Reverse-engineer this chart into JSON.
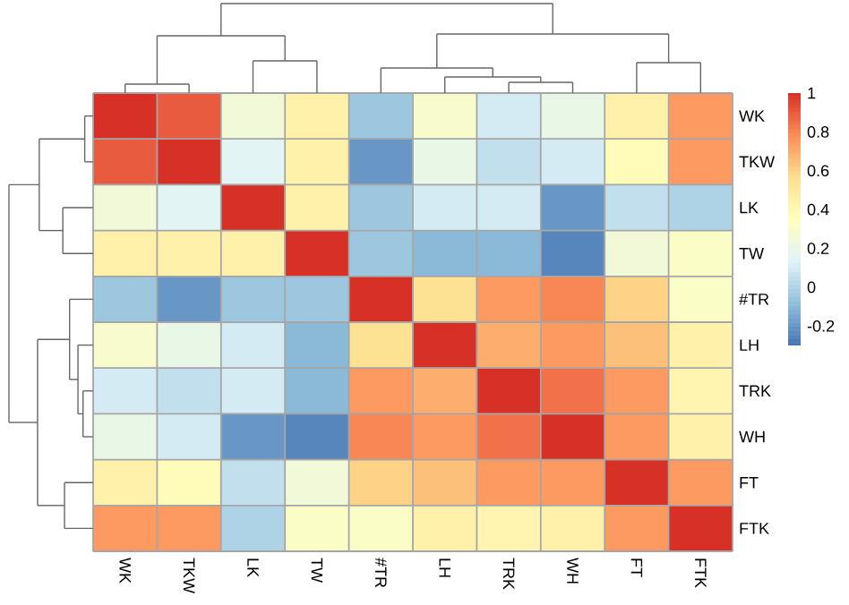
{
  "chart_data": {
    "type": "heatmap",
    "categories": [
      "WK",
      "TKW",
      "LK",
      "TW",
      "#TR",
      "LH",
      "TRK",
      "WH",
      "FT",
      "FTK"
    ],
    "y_categories": [
      "WK",
      "TKW",
      "LK",
      "TW",
      "#TR",
      "LH",
      "TRK",
      "WH",
      "FT",
      "FTK"
    ],
    "cells": [
      [
        1,
        0.9,
        0.25,
        0.45,
        -0.05,
        0.3,
        0.1,
        0.2,
        0.45,
        0.75
      ],
      [
        0.9,
        1,
        0.15,
        0.45,
        -0.2,
        0.2,
        0.05,
        0.1,
        0.38,
        0.75
      ],
      [
        0.25,
        0.15,
        1,
        0.45,
        -0.05,
        0.1,
        0.1,
        -0.2,
        0.05,
        0.0
      ],
      [
        0.45,
        0.45,
        0.45,
        1,
        -0.05,
        -0.1,
        -0.1,
        -0.25,
        0.25,
        0.32
      ],
      [
        -0.05,
        -0.2,
        -0.05,
        -0.05,
        1,
        0.55,
        0.75,
        0.8,
        0.6,
        0.32
      ],
      [
        0.3,
        0.2,
        0.1,
        -0.1,
        0.55,
        1,
        0.7,
        0.75,
        0.65,
        0.45
      ],
      [
        0.1,
        0.05,
        0.1,
        -0.1,
        0.75,
        0.7,
        1,
        0.85,
        0.75,
        0.42
      ],
      [
        0.2,
        0.1,
        -0.2,
        -0.25,
        0.8,
        0.75,
        0.85,
        1,
        0.75,
        0.45
      ],
      [
        0.45,
        0.38,
        0.05,
        0.25,
        0.6,
        0.65,
        0.75,
        0.75,
        1,
        0.75
      ],
      [
        0.75,
        0.75,
        0.0,
        0.32,
        0.32,
        0.45,
        0.42,
        0.45,
        0.75,
        1
      ]
    ],
    "clim": [
      -0.3,
      1
    ],
    "cticks": [
      -0.2,
      0,
      0.2,
      0.4,
      0.6,
      0.8,
      1
    ]
  }
}
